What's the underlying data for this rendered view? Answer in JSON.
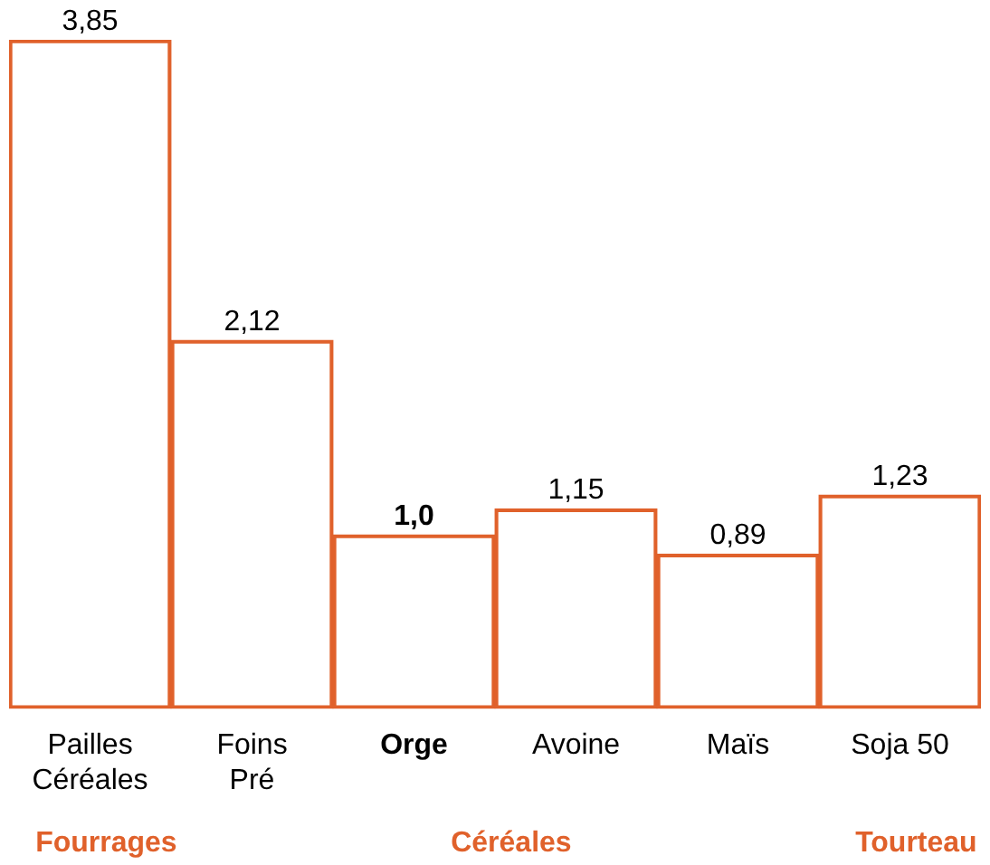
{
  "chart_data": {
    "type": "bar",
    "categories": [
      "Pailles\nCéréales",
      "Foins\nPré",
      "Orge",
      "Avoine",
      "Maïs",
      "Soja 50"
    ],
    "values": [
      3.85,
      2.12,
      1.0,
      1.15,
      0.89,
      1.23
    ],
    "value_labels": [
      "3,85",
      "2,12",
      "1,0",
      "1,15",
      "0,89",
      "1,23"
    ],
    "color": "#e0612b",
    "annotations": [
      "Fourrages",
      "Céréales",
      "Tourteau"
    ]
  }
}
